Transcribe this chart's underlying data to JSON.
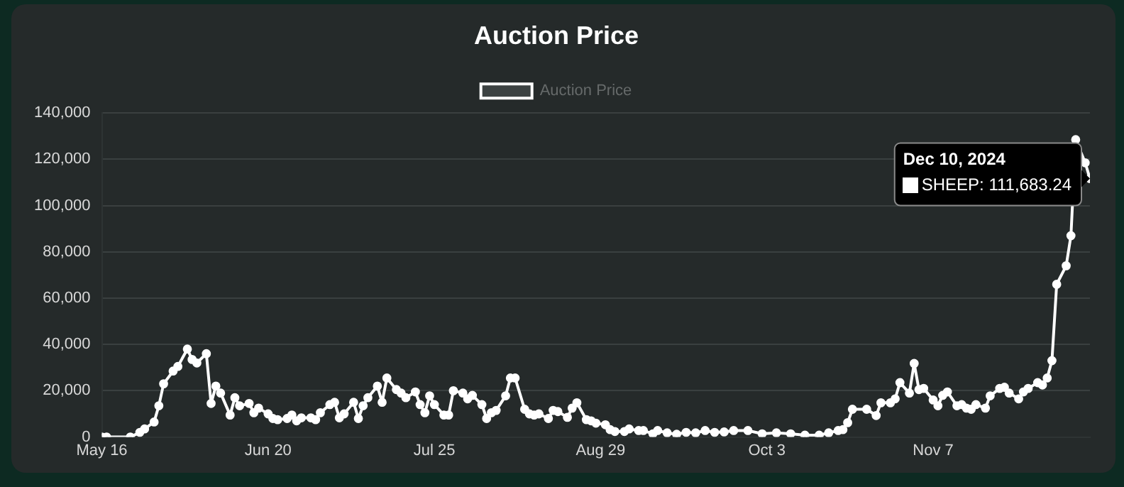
{
  "chart_data": {
    "type": "line",
    "title": "Auction Price",
    "legend": "top",
    "grid": "y",
    "marker": "circle",
    "line_style": "solid",
    "x": [
      "2024-05-16",
      "2024-05-17",
      "2024-05-22",
      "2024-05-24",
      "2024-05-25",
      "2024-05-27",
      "2024-05-28",
      "2024-05-29",
      "2024-05-31",
      "2024-06-01",
      "2024-06-03",
      "2024-06-04",
      "2024-06-05",
      "2024-06-07",
      "2024-06-08",
      "2024-06-09",
      "2024-06-10",
      "2024-06-12",
      "2024-06-13",
      "2024-06-14",
      "2024-06-16",
      "2024-06-17",
      "2024-06-18",
      "2024-06-20",
      "2024-06-21",
      "2024-06-22",
      "2024-06-24",
      "2024-06-25",
      "2024-06-26",
      "2024-06-27",
      "2024-06-29",
      "2024-06-30",
      "2024-07-01",
      "2024-07-03",
      "2024-07-04",
      "2024-07-05",
      "2024-07-06",
      "2024-07-08",
      "2024-07-09",
      "2024-07-10",
      "2024-07-11",
      "2024-07-13",
      "2024-07-14",
      "2024-07-15",
      "2024-07-17",
      "2024-07-18",
      "2024-07-19",
      "2024-07-21",
      "2024-07-22",
      "2024-07-23",
      "2024-07-24",
      "2024-07-25",
      "2024-07-27",
      "2024-07-28",
      "2024-07-29",
      "2024-07-31",
      "2024-08-01",
      "2024-08-02",
      "2024-08-04",
      "2024-08-05",
      "2024-08-06",
      "2024-08-07",
      "2024-08-09",
      "2024-08-10",
      "2024-08-11",
      "2024-08-13",
      "2024-08-14",
      "2024-08-15",
      "2024-08-16",
      "2024-08-18",
      "2024-08-19",
      "2024-08-20",
      "2024-08-22",
      "2024-08-23",
      "2024-08-24",
      "2024-08-26",
      "2024-08-27",
      "2024-08-28",
      "2024-08-30",
      "2024-08-31",
      "2024-09-01",
      "2024-09-03",
      "2024-09-04",
      "2024-09-06",
      "2024-09-07",
      "2024-09-09",
      "2024-09-10",
      "2024-09-12",
      "2024-09-14",
      "2024-09-16",
      "2024-09-18",
      "2024-09-20",
      "2024-09-22",
      "2024-09-24",
      "2024-09-26",
      "2024-09-29",
      "2024-10-02",
      "2024-10-05",
      "2024-10-08",
      "2024-10-11",
      "2024-10-14",
      "2024-10-16",
      "2024-10-18",
      "2024-10-19",
      "2024-10-20",
      "2024-10-21",
      "2024-10-24",
      "2024-10-26",
      "2024-10-27",
      "2024-10-29",
      "2024-10-30",
      "2024-10-31",
      "2024-11-02",
      "2024-11-03",
      "2024-11-04",
      "2024-11-05",
      "2024-11-07",
      "2024-11-08",
      "2024-11-09",
      "2024-11-10",
      "2024-11-12",
      "2024-11-13",
      "2024-11-14",
      "2024-11-15",
      "2024-11-16",
      "2024-11-18",
      "2024-11-19",
      "2024-11-21",
      "2024-11-22",
      "2024-11-23",
      "2024-11-25",
      "2024-11-26",
      "2024-11-27",
      "2024-11-29",
      "2024-11-30",
      "2024-12-01",
      "2024-12-02",
      "2024-12-03",
      "2024-12-05",
      "2024-12-06",
      "2024-12-07",
      "2024-12-09",
      "2024-12-10"
    ],
    "series": [
      {
        "name": "Auction Price",
        "color": "#ffffff",
        "values": [
          0,
          0,
          0,
          2000,
          3500,
          6500,
          13500,
          23000,
          28500,
          30500,
          38000,
          33500,
          32000,
          36000,
          14500,
          22000,
          19000,
          9500,
          17000,
          13500,
          14500,
          10500,
          12500,
          10000,
          8000,
          7500,
          8000,
          9500,
          7000,
          8300,
          8300,
          7500,
          10500,
          14000,
          15000,
          8300,
          10000,
          15000,
          8000,
          13500,
          17000,
          22000,
          15000,
          25500,
          20500,
          19000,
          17000,
          19500,
          14000,
          10500,
          17800,
          14000,
          9500,
          9500,
          20000,
          19000,
          16500,
          18000,
          14000,
          8000,
          10500,
          11500,
          17800,
          25500,
          25500,
          12000,
          10000,
          9500,
          10000,
          8000,
          11500,
          11000,
          8500,
          12500,
          14800,
          7500,
          7000,
          6000,
          5300,
          3200,
          2400,
          2400,
          3500,
          2800,
          2800,
          1400,
          2800,
          1800,
          1200,
          2000,
          1800,
          2800,
          2000,
          2200,
          2800,
          2800,
          1400,
          1800,
          1400,
          800,
          800,
          1800,
          2800,
          3200,
          6200,
          12000,
          12000,
          9300,
          14800,
          14800,
          16500,
          23500,
          19000,
          31800,
          20500,
          21000,
          16000,
          13500,
          18000,
          19500,
          13500,
          14000,
          12500,
          12000,
          14000,
          12500,
          17800,
          21000,
          21500,
          19000,
          16500,
          19500,
          21000,
          23500,
          22500,
          25500,
          33000,
          66000,
          74000,
          87000,
          128500,
          118500,
          111683.24
        ]
      }
    ],
    "xlim": [
      "2024-05-16",
      "2024-12-10"
    ],
    "xticks": [
      {
        "value": "2024-05-16",
        "label": "May 16"
      },
      {
        "value": "2024-06-20",
        "label": "Jun 20"
      },
      {
        "value": "2024-07-25",
        "label": "Jul 25"
      },
      {
        "value": "2024-08-29",
        "label": "Aug 29"
      },
      {
        "value": "2024-10-03",
        "label": "Oct 3"
      },
      {
        "value": "2024-11-07",
        "label": "Nov 7"
      }
    ],
    "ylim": [
      0,
      140000
    ],
    "yticks": [
      {
        "value": 0,
        "label": "0"
      },
      {
        "value": 20000,
        "label": "20,000"
      },
      {
        "value": 40000,
        "label": "40,000"
      },
      {
        "value": 60000,
        "label": "60,000"
      },
      {
        "value": 80000,
        "label": "80,000"
      },
      {
        "value": 100000,
        "label": "100,000"
      },
      {
        "value": 120000,
        "label": "120,000"
      },
      {
        "value": 140000,
        "label": "140,000"
      }
    ],
    "annotations": [
      {
        "text": "Dec 10, 2024\nSHEEP: 111,683.24",
        "x": "2024-12-10",
        "y": 111683.24
      }
    ]
  }
}
